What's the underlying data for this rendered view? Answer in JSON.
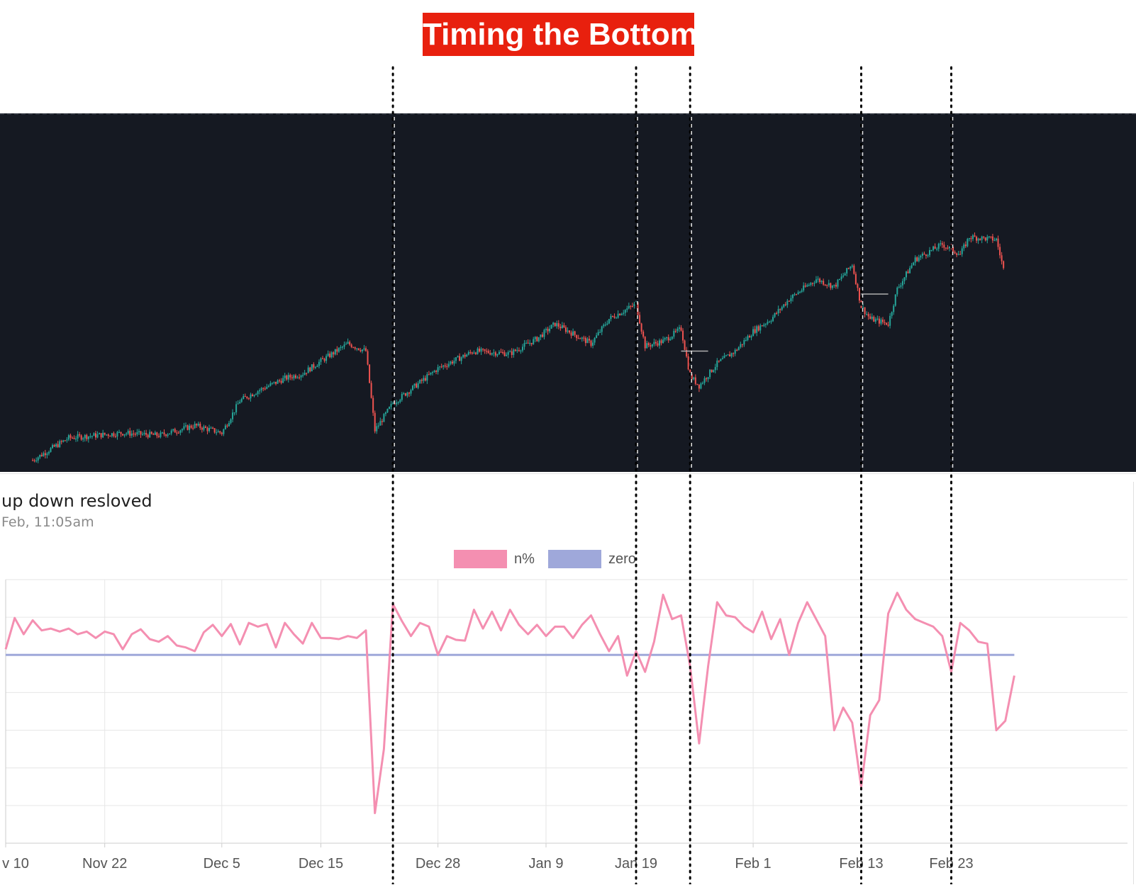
{
  "banner": {
    "title": "Timing the Bottom",
    "background": "#e8200e"
  },
  "indicator": {
    "title": "up down resloved",
    "subtitle": "Feb, 11:05am"
  },
  "colors": {
    "candle_up": "#26a69a",
    "candle_down": "#ef5350",
    "panel_bg": "#151922",
    "n_line": "#f48fb1",
    "zero_line": "#9fa8da",
    "marker": "#000000"
  },
  "chart_data": [
    {
      "type": "candlestick",
      "description_axis": "none",
      "anchor_closes": [
        [
          "Nov 13",
          3.0
        ],
        [
          "Nov 17",
          12
        ],
        [
          "Nov 23",
          14
        ],
        [
          "Nov 27",
          13
        ],
        [
          "Dec 1",
          17
        ],
        [
          "Dec 4",
          14
        ],
        [
          "Dec 6",
          27
        ],
        [
          "Dec 8",
          31
        ],
        [
          "Dec 11",
          36
        ],
        [
          "Dec 13",
          38
        ],
        [
          "Dec 15",
          43
        ],
        [
          "Dec 18",
          50
        ],
        [
          "Dec 20",
          47
        ],
        [
          "Dec 21",
          15
        ],
        [
          "Dec 23",
          26
        ],
        [
          "Dec 28",
          40
        ],
        [
          "Jan 1",
          47
        ],
        [
          "Jan 5",
          46
        ],
        [
          "Jan 8",
          52
        ],
        [
          "Jan 10",
          58
        ],
        [
          "Jan 12",
          54
        ],
        [
          "Jan 14",
          50
        ],
        [
          "Jan 16",
          60
        ],
        [
          "Jan 19",
          66
        ],
        [
          "Jan 20",
          49
        ],
        [
          "Jan 22",
          51
        ],
        [
          "Jan 24",
          56
        ],
        [
          "Jan 25",
          37
        ],
        [
          "Jan 26",
          33
        ],
        [
          "Jan 28",
          42
        ],
        [
          "Jan 30",
          47
        ],
        [
          "Feb 1",
          55
        ],
        [
          "Feb 3",
          60
        ],
        [
          "Feb 5",
          68
        ],
        [
          "Feb 8",
          76
        ],
        [
          "Feb 10",
          73
        ],
        [
          "Feb 12",
          82
        ],
        [
          "Feb 13",
          65
        ],
        [
          "Feb 14",
          60
        ],
        [
          "Feb 16",
          58
        ],
        [
          "Feb 17",
          72
        ],
        [
          "Feb 19",
          84
        ],
        [
          "Feb 22",
          90
        ],
        [
          "Feb 24",
          86
        ],
        [
          "Feb 25",
          93
        ],
        [
          "Feb 28",
          92
        ],
        [
          "Mar 1",
          77
        ]
      ],
      "reference_levels": [
        {
          "from": "Jan 24",
          "to": "Jan 27",
          "value": 47
        },
        {
          "from": "Feb 13",
          "to": "Feb 16",
          "value": 70
        }
      ]
    },
    {
      "type": "line",
      "title": "up down resloved",
      "x_tick_labels": [
        "v 10",
        "Nov 22",
        "Dec 5",
        "Dec 15",
        "Dec 28",
        "Jan 9",
        "Jan 19",
        "Feb 1",
        "Feb 13",
        "Feb 23"
      ],
      "legend": [
        "n%",
        "zero"
      ],
      "legend_position": "top-center",
      "grid": true,
      "ylim": [
        -5,
        2
      ],
      "series": [
        {
          "name": "n%",
          "points": [
            [
              "Nov 10",
              0.15
            ],
            [
              "Nov 11",
              0.98
            ],
            [
              "Nov 12",
              0.55
            ],
            [
              "Nov 13",
              0.92
            ],
            [
              "Nov 14",
              0.65
            ],
            [
              "Nov 15",
              0.7
            ],
            [
              "Nov 16",
              0.62
            ],
            [
              "Nov 17",
              0.7
            ],
            [
              "Nov 18",
              0.55
            ],
            [
              "Nov 19",
              0.62
            ],
            [
              "Nov 20",
              0.45
            ],
            [
              "Nov 21",
              0.62
            ],
            [
              "Nov 22",
              0.55
            ],
            [
              "Nov 23",
              0.15
            ],
            [
              "Nov 24",
              0.55
            ],
            [
              "Nov 25",
              0.68
            ],
            [
              "Nov 26",
              0.42
            ],
            [
              "Nov 27",
              0.35
            ],
            [
              "Nov 28",
              0.5
            ],
            [
              "Nov 29",
              0.25
            ],
            [
              "Nov 30",
              0.2
            ],
            [
              "Dec 1",
              0.1
            ],
            [
              "Dec 2",
              0.6
            ],
            [
              "Dec 3",
              0.8
            ],
            [
              "Dec 4",
              0.5
            ],
            [
              "Dec 5",
              0.82
            ],
            [
              "Dec 6",
              0.28
            ],
            [
              "Dec 7",
              0.85
            ],
            [
              "Dec 8",
              0.75
            ],
            [
              "Dec 9",
              0.82
            ],
            [
              "Dec 10",
              0.2
            ],
            [
              "Dec 11",
              0.85
            ],
            [
              "Dec 12",
              0.55
            ],
            [
              "Dec 13",
              0.3
            ],
            [
              "Dec 14",
              0.85
            ],
            [
              "Dec 15",
              0.45
            ],
            [
              "Dec 16",
              0.45
            ],
            [
              "Dec 17",
              0.42
            ],
            [
              "Dec 18",
              0.5
            ],
            [
              "Dec 19",
              0.45
            ],
            [
              "Dec 20",
              0.65
            ],
            [
              "Dec 21",
              -4.2
            ],
            [
              "Dec 22",
              -2.5
            ],
            [
              "Dec 23",
              1.35
            ],
            [
              "Dec 24",
              0.9
            ],
            [
              "Dec 25",
              0.5
            ],
            [
              "Dec 26",
              0.85
            ],
            [
              "Dec 27",
              0.75
            ],
            [
              "Dec 28",
              0.0
            ],
            [
              "Dec 29",
              0.5
            ],
            [
              "Dec 30",
              0.4
            ],
            [
              "Dec 31",
              0.38
            ],
            [
              "Jan 1",
              1.2
            ],
            [
              "Jan 2",
              0.7
            ],
            [
              "Jan 3",
              1.15
            ],
            [
              "Jan 4",
              0.65
            ],
            [
              "Jan 5",
              1.2
            ],
            [
              "Jan 6",
              0.8
            ],
            [
              "Jan 7",
              0.55
            ],
            [
              "Jan 8",
              0.8
            ],
            [
              "Jan 9",
              0.5
            ],
            [
              "Jan 10",
              0.75
            ],
            [
              "Jan 11",
              0.75
            ],
            [
              "Jan 12",
              0.45
            ],
            [
              "Jan 13",
              0.8
            ],
            [
              "Jan 14",
              1.05
            ],
            [
              "Jan 15",
              0.55
            ],
            [
              "Jan 16",
              0.1
            ],
            [
              "Jan 17",
              0.5
            ],
            [
              "Jan 18",
              -0.55
            ],
            [
              "Jan 19",
              0.1
            ],
            [
              "Jan 20",
              -0.45
            ],
            [
              "Jan 21",
              0.35
            ],
            [
              "Jan 22",
              1.6
            ],
            [
              "Jan 23",
              0.95
            ],
            [
              "Jan 24",
              1.05
            ],
            [
              "Jan 25",
              -0.3
            ],
            [
              "Jan 26",
              -2.35
            ],
            [
              "Jan 27",
              -0.3
            ],
            [
              "Jan 28",
              1.4
            ],
            [
              "Jan 29",
              1.05
            ],
            [
              "Jan 30",
              1.0
            ],
            [
              "Jan 31",
              0.75
            ],
            [
              "Feb 1",
              0.6
            ],
            [
              "Feb 2",
              1.15
            ],
            [
              "Feb 3",
              0.42
            ],
            [
              "Feb 4",
              0.95
            ],
            [
              "Feb 5",
              0.0
            ],
            [
              "Feb 6",
              0.85
            ],
            [
              "Feb 7",
              1.4
            ],
            [
              "Feb 8",
              0.95
            ],
            [
              "Feb 9",
              0.5
            ],
            [
              "Feb 10",
              -2.0
            ],
            [
              "Feb 11",
              -1.4
            ],
            [
              "Feb 12",
              -1.8
            ],
            [
              "Feb 13",
              -3.5
            ],
            [
              "Feb 14",
              -1.6
            ],
            [
              "Feb 15",
              -1.2
            ],
            [
              "Feb 16",
              1.1
            ],
            [
              "Feb 17",
              1.65
            ],
            [
              "Feb 18",
              1.2
            ],
            [
              "Feb 19",
              0.95
            ],
            [
              "Feb 20",
              0.85
            ],
            [
              "Feb 21",
              0.75
            ],
            [
              "Feb 22",
              0.5
            ],
            [
              "Feb 23",
              -0.45
            ],
            [
              "Feb 24",
              0.85
            ],
            [
              "Feb 25",
              0.65
            ],
            [
              "Feb 26",
              0.35
            ],
            [
              "Feb 27",
              0.3
            ],
            [
              "Feb 28",
              -2.0
            ],
            [
              "Mar 1",
              -1.75
            ],
            [
              "Mar 2",
              -0.55
            ]
          ]
        },
        {
          "name": "zero",
          "points": [
            [
              "Nov 10",
              0
            ],
            [
              "Mar 2",
              0
            ]
          ]
        }
      ],
      "annotations": {
        "vertical_dotted_lines_at": [
          "Dec 23",
          "Jan 19",
          "Jan 25",
          "Feb 13",
          "Feb 23"
        ]
      }
    }
  ]
}
